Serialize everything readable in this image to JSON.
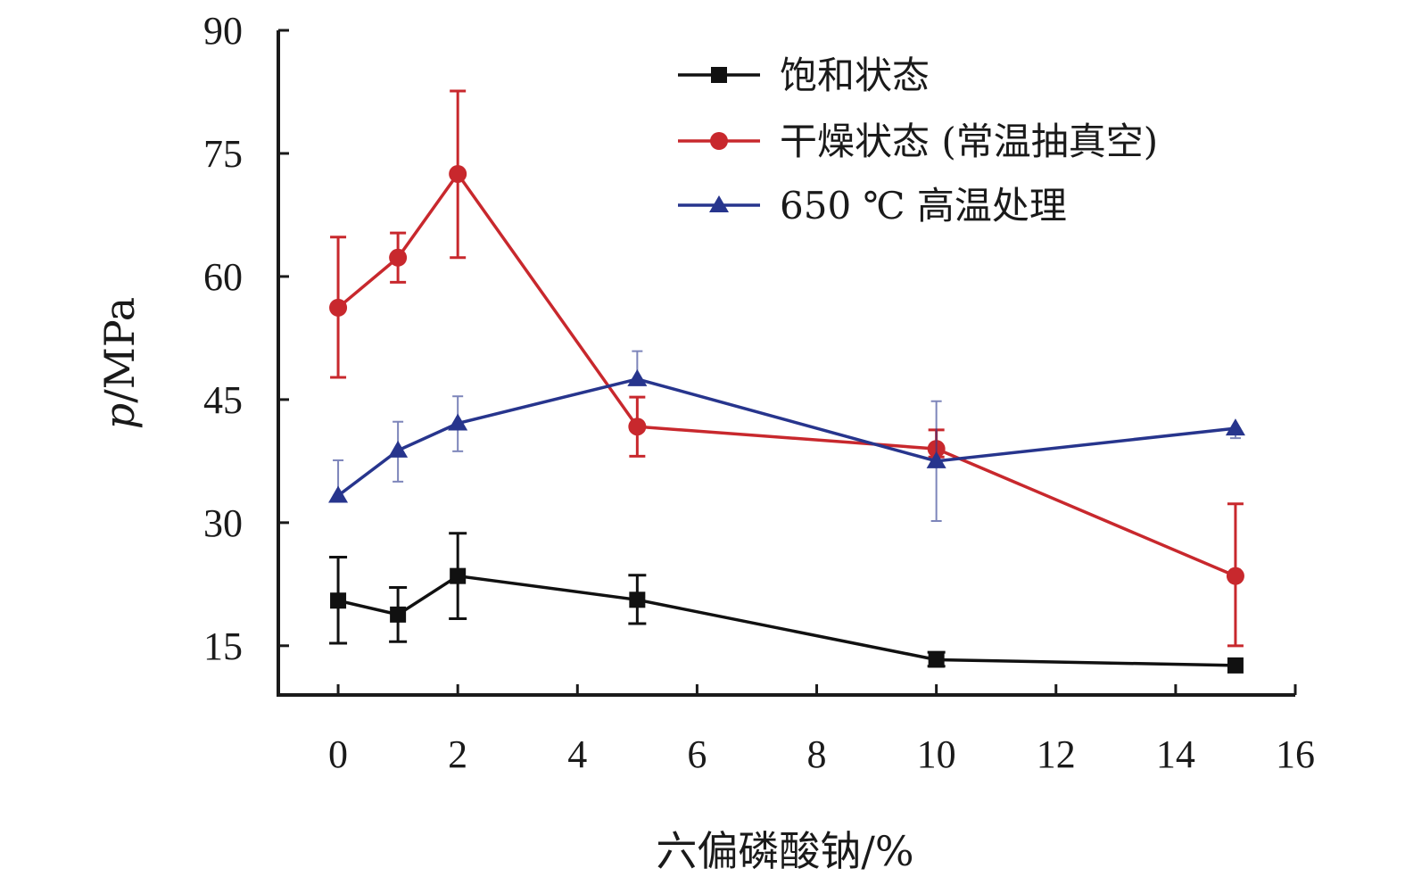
{
  "chart_data": {
    "type": "line",
    "xlabel": "六偏磷酸钠/%",
    "ylabel_italic": "p",
    "ylabel_rest": "/MPa",
    "xlim": [
      -1,
      16
    ],
    "ylim": [
      9,
      90
    ],
    "xticks": [
      0,
      2,
      4,
      6,
      8,
      10,
      12,
      14,
      16
    ],
    "yticks": [
      15,
      30,
      45,
      60,
      75,
      90
    ],
    "grid": false,
    "legend_position": "top-right",
    "series": [
      {
        "name": "饱和状态",
        "color": "#111111",
        "marker": "square",
        "x": [
          0,
          1,
          2,
          5,
          10,
          15
        ],
        "y": [
          20.5,
          18.8,
          23.5,
          20.6,
          13.3,
          12.6
        ],
        "err_low": [
          15.3,
          15.5,
          18.3,
          17.7,
          12.5,
          12.6
        ],
        "err_high": [
          25.8,
          22.1,
          28.7,
          23.6,
          14.2,
          12.6
        ]
      },
      {
        "name": "干燥状态 (常温抽真空)",
        "color": "#c8282d",
        "marker": "circle",
        "x": [
          0,
          1,
          2,
          5,
          10,
          15
        ],
        "y": [
          56.2,
          62.3,
          72.5,
          41.7,
          39.0,
          23.5
        ],
        "err_low": [
          47.7,
          59.3,
          62.3,
          38.1,
          38.0,
          15.0
        ],
        "err_high": [
          64.8,
          65.3,
          82.6,
          45.3,
          41.3,
          32.3
        ]
      },
      {
        "name": "650 ℃ 高温处理",
        "color": "#27358d",
        "marker": "triangle",
        "x": [
          0,
          1,
          2,
          5,
          10,
          15
        ],
        "y": [
          33.3,
          38.8,
          42.1,
          47.5,
          37.5,
          41.5
        ],
        "err_low": [
          33.3,
          35.0,
          38.7,
          47.5,
          30.2,
          40.3
        ],
        "err_high": [
          37.6,
          42.3,
          45.4,
          50.9,
          44.8,
          41.5
        ]
      }
    ]
  }
}
